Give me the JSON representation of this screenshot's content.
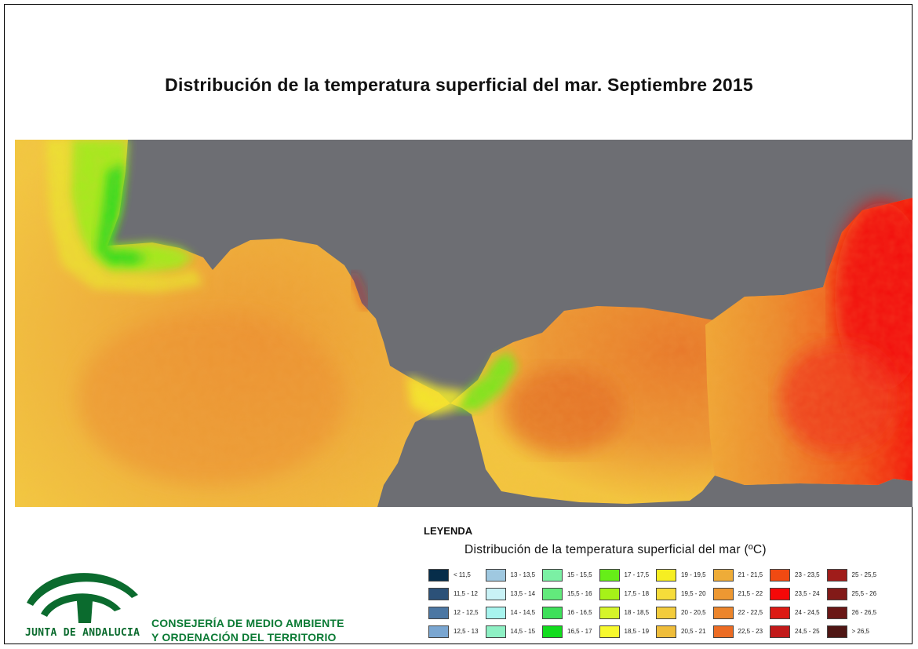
{
  "title": "Distribución de la temperatura superficial del mar. Septiembre 2015",
  "colors": {
    "land": "#6d6e73",
    "frame": "#000000",
    "brand_green": "#0b7a34"
  },
  "legend": {
    "heading": "LEYENDA",
    "subtitle": "Distribución de la temperatura superficial del mar (ºC)",
    "items": [
      {
        "label": "< 11,5",
        "color": "#062d4a"
      },
      {
        "label": "11,5 - 12",
        "color": "#2c5178"
      },
      {
        "label": "12 - 12,5",
        "color": "#4c77a3"
      },
      {
        "label": "12,5 - 13",
        "color": "#7aa6d1"
      },
      {
        "label": "13 - 13,5",
        "color": "#9fc8e0"
      },
      {
        "label": "13,5 - 14",
        "color": "#c9f2f6"
      },
      {
        "label": "14 - 14,5",
        "color": "#a8f4ee"
      },
      {
        "label": "14,5 - 15",
        "color": "#8ef0c4"
      },
      {
        "label": "15 - 15,5",
        "color": "#7bf0a4"
      },
      {
        "label": "15,5 - 16",
        "color": "#62ea7c"
      },
      {
        "label": "16 - 16,5",
        "color": "#3ee05a"
      },
      {
        "label": "16,5 - 17",
        "color": "#12dc1e"
      },
      {
        "label": "17 - 17,5",
        "color": "#66ee18"
      },
      {
        "label": "17,5 - 18",
        "color": "#a6f218"
      },
      {
        "label": "18 - 18,5",
        "color": "#d6f52a"
      },
      {
        "label": "18,5 - 19",
        "color": "#f7f92e"
      },
      {
        "label": "19 - 19,5",
        "color": "#f6ee22"
      },
      {
        "label": "19,5 - 20",
        "color": "#f6dc3a"
      },
      {
        "label": "20 - 20,5",
        "color": "#f3cc3c"
      },
      {
        "label": "20,5 - 21",
        "color": "#efbd3a"
      },
      {
        "label": "21 - 21,5",
        "color": "#eeac38"
      },
      {
        "label": "21,5 - 22",
        "color": "#ed9832"
      },
      {
        "label": "22 - 22,5",
        "color": "#ec852c"
      },
      {
        "label": "22,5 - 23",
        "color": "#ec6c24"
      },
      {
        "label": "23 - 23,5",
        "color": "#f04a12"
      },
      {
        "label": "23,5 - 24",
        "color": "#f50808"
      },
      {
        "label": "24 - 24,5",
        "color": "#dc1a14"
      },
      {
        "label": "24,5 - 25",
        "color": "#c21a1a"
      },
      {
        "label": "25 - 25,5",
        "color": "#a01c1a"
      },
      {
        "label": "25,5 - 26",
        "color": "#821a18"
      },
      {
        "label": "26 - 26,5",
        "color": "#6a1716"
      },
      {
        "label": "> 26,5",
        "color": "#4e1614"
      }
    ]
  },
  "branding": {
    "org": "JUNTA DE ANDALUCIA",
    "department_line1": "CONSEJERÍA DE MEDIO AMBIENTE",
    "department_line2": "Y ORDENACIÓN DEL TERRITORIO",
    "logo_icon": "junta-andalucia-arches-logo"
  }
}
